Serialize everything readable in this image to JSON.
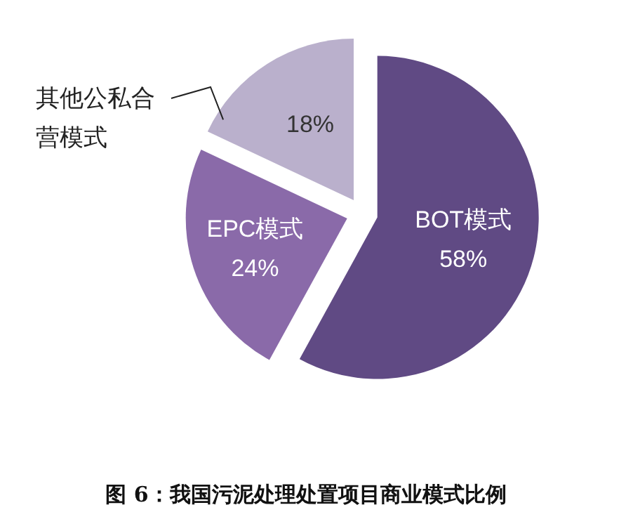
{
  "chart_data": {
    "type": "pie",
    "title": "图 6：我国污泥处理处置项目商业模式比例",
    "categories": [
      "BOT模式",
      "EPC模式",
      "其他公私合营模式"
    ],
    "values": [
      58,
      24,
      18
    ],
    "colors": [
      "#604a84",
      "#8a6aa9",
      "#bab0cc"
    ],
    "value_labels": [
      "58%",
      "24%",
      "18%"
    ]
  }
}
